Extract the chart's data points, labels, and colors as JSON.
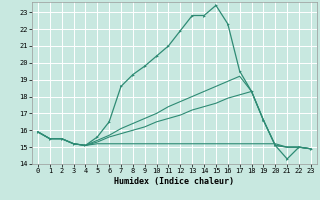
{
  "title": "",
  "xlabel": "Humidex (Indice chaleur)",
  "background_color": "#c8e8e0",
  "grid_color": "#ffffff",
  "line_color": "#2e8b74",
  "xlim": [
    -0.5,
    23.5
  ],
  "ylim": [
    14,
    23.6
  ],
  "yticks": [
    14,
    15,
    16,
    17,
    18,
    19,
    20,
    21,
    22,
    23
  ],
  "xticks": [
    0,
    1,
    2,
    3,
    4,
    5,
    6,
    7,
    8,
    9,
    10,
    11,
    12,
    13,
    14,
    15,
    16,
    17,
    18,
    19,
    20,
    21,
    22,
    23
  ],
  "line1_x": [
    0,
    1,
    2,
    3,
    4,
    5,
    6,
    7,
    8,
    9,
    10,
    11,
    12,
    13,
    14,
    15,
    16,
    17,
    18,
    19,
    20,
    21,
    22,
    23
  ],
  "line1_y": [
    15.9,
    15.5,
    15.5,
    15.2,
    15.1,
    15.6,
    16.5,
    18.6,
    19.3,
    19.8,
    20.4,
    21.0,
    21.9,
    22.8,
    22.8,
    23.4,
    22.3,
    19.5,
    18.3,
    16.6,
    15.1,
    14.3,
    15.0,
    14.9
  ],
  "line2_x": [
    0,
    1,
    2,
    3,
    4,
    5,
    6,
    7,
    8,
    9,
    10,
    11,
    12,
    13,
    14,
    15,
    16,
    17,
    18,
    19,
    20,
    21,
    22,
    23
  ],
  "line2_y": [
    15.9,
    15.5,
    15.5,
    15.2,
    15.1,
    15.2,
    15.2,
    15.2,
    15.2,
    15.2,
    15.2,
    15.2,
    15.2,
    15.2,
    15.2,
    15.2,
    15.2,
    15.2,
    15.2,
    15.2,
    15.2,
    15.0,
    15.0,
    14.9
  ],
  "line3_x": [
    0,
    1,
    2,
    3,
    4,
    5,
    6,
    7,
    8,
    9,
    10,
    11,
    12,
    13,
    14,
    15,
    16,
    17,
    18,
    19,
    20,
    21,
    22,
    23
  ],
  "line3_y": [
    15.9,
    15.5,
    15.5,
    15.2,
    15.1,
    15.3,
    15.6,
    15.8,
    16.0,
    16.2,
    16.5,
    16.7,
    16.9,
    17.2,
    17.4,
    17.6,
    17.9,
    18.1,
    18.3,
    16.6,
    15.1,
    15.0,
    15.0,
    14.9
  ],
  "line4_x": [
    0,
    1,
    2,
    3,
    4,
    5,
    6,
    7,
    8,
    9,
    10,
    11,
    12,
    13,
    14,
    15,
    16,
    17,
    18,
    19,
    20,
    21,
    22,
    23
  ],
  "line4_y": [
    15.9,
    15.5,
    15.5,
    15.2,
    15.1,
    15.4,
    15.7,
    16.1,
    16.4,
    16.7,
    17.0,
    17.4,
    17.7,
    18.0,
    18.3,
    18.6,
    18.9,
    19.2,
    18.3,
    16.6,
    15.1,
    15.0,
    15.0,
    14.9
  ]
}
